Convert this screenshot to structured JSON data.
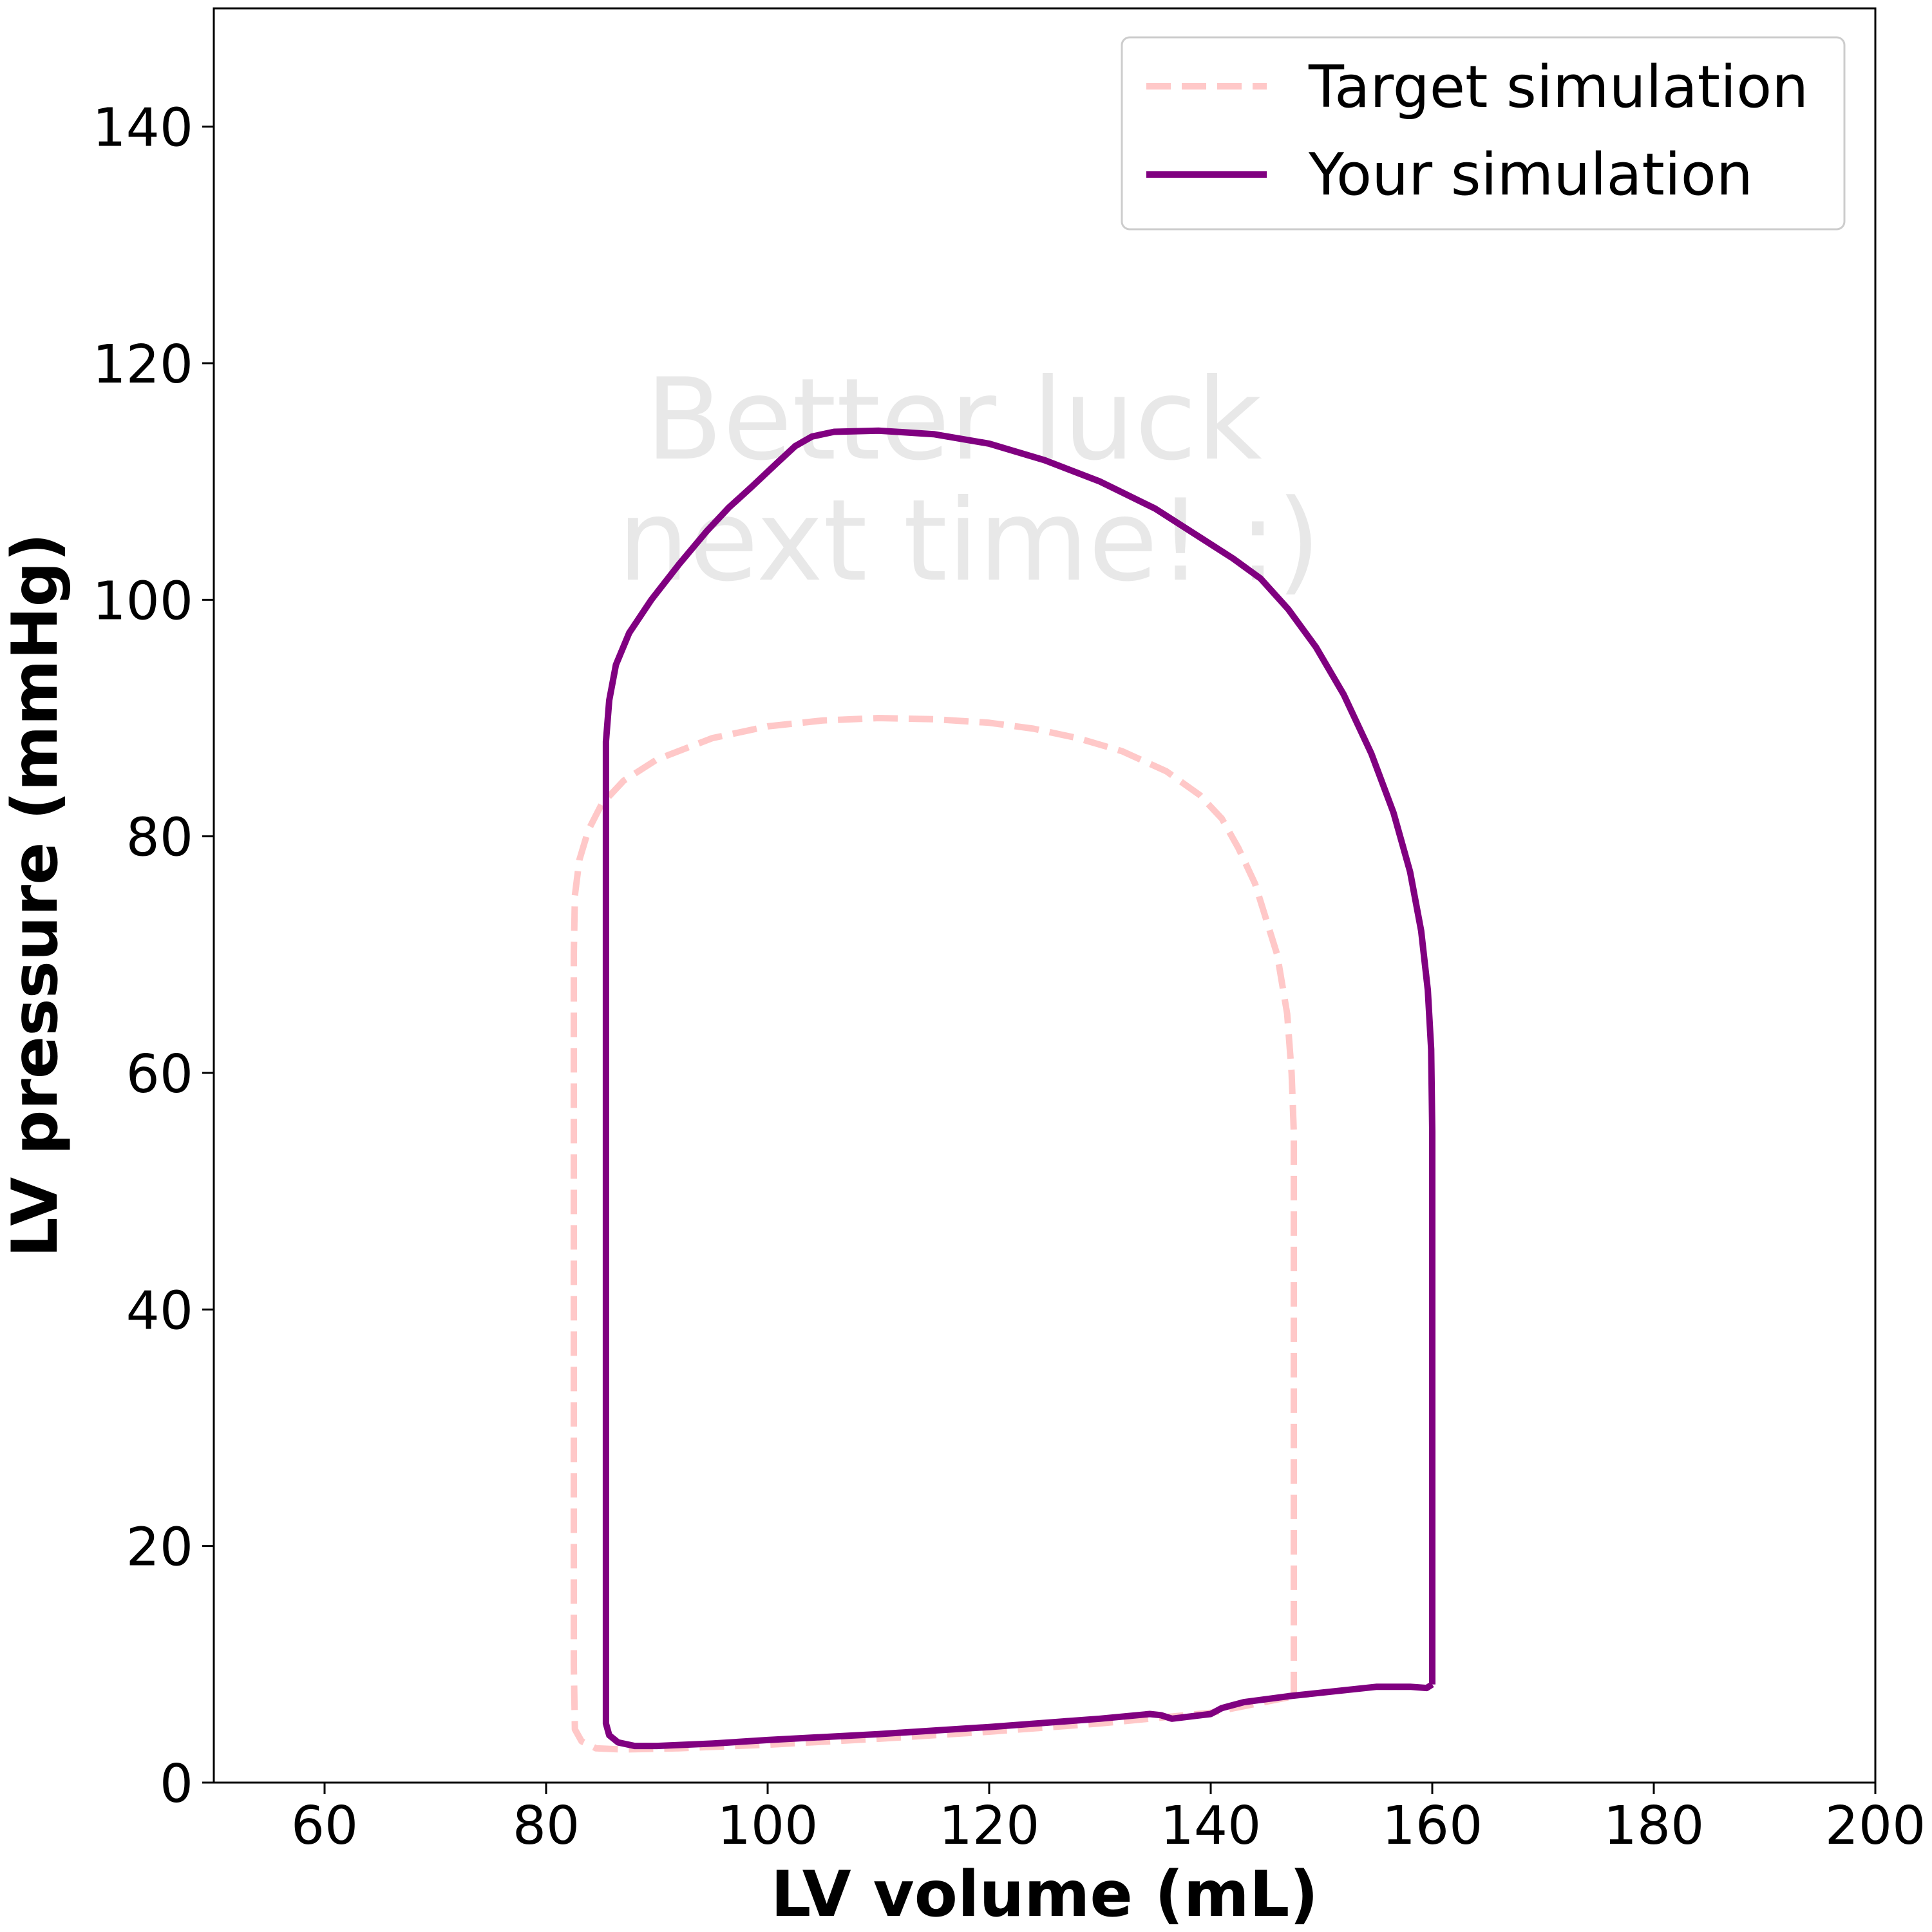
{
  "chart_data": {
    "type": "line",
    "xlabel": "LV volume (mL)",
    "ylabel": "LV pressure (mmHg)",
    "xlim": [
      50,
      200
    ],
    "ylim": [
      0,
      150
    ],
    "x_ticks": [
      60,
      80,
      100,
      120,
      140,
      160,
      180,
      200
    ],
    "y_ticks": [
      0,
      20,
      40,
      60,
      80,
      100,
      120,
      140
    ],
    "grid": false,
    "legend_position": "top-right",
    "annotation": [
      "Better luck",
      "next time! :)"
    ],
    "series": [
      {
        "name": "Target simulation",
        "color": "#ffc8c8",
        "line_style": "dashed",
        "points": [
          [
            147.5,
            7.3
          ],
          [
            147.5,
            20
          ],
          [
            147.5,
            40
          ],
          [
            147.5,
            55
          ],
          [
            147.3,
            60
          ],
          [
            146.9,
            65
          ],
          [
            146.0,
            70
          ],
          [
            145.0,
            73
          ],
          [
            144.0,
            76
          ],
          [
            142.5,
            79
          ],
          [
            141.0,
            81.5
          ],
          [
            139.0,
            83.5
          ],
          [
            136.0,
            85.5
          ],
          [
            132.0,
            87.2
          ],
          [
            128.0,
            88.3
          ],
          [
            124.0,
            89.1
          ],
          [
            120.0,
            89.6
          ],
          [
            115.0,
            89.9
          ],
          [
            110.0,
            90.0
          ],
          [
            105.0,
            89.8
          ],
          [
            100.0,
            89.3
          ],
          [
            95.0,
            88.3
          ],
          [
            90.0,
            86.5
          ],
          [
            87.0,
            84.7
          ],
          [
            85.0,
            82.7
          ],
          [
            83.8,
            80.5
          ],
          [
            83.0,
            78.0
          ],
          [
            82.6,
            75.0
          ],
          [
            82.5,
            70
          ],
          [
            82.5,
            50
          ],
          [
            82.5,
            30
          ],
          [
            82.5,
            10
          ],
          [
            82.6,
            4.5
          ],
          [
            83.2,
            3.5
          ],
          [
            84.5,
            2.9
          ],
          [
            87.0,
            2.8
          ],
          [
            92.0,
            2.9
          ],
          [
            100.0,
            3.2
          ],
          [
            110.0,
            3.7
          ],
          [
            120.0,
            4.3
          ],
          [
            130.0,
            5.0
          ],
          [
            140.0,
            5.9
          ],
          [
            147.5,
            7.3
          ]
        ]
      },
      {
        "name": "Your simulation",
        "color": "#800080",
        "line_style": "solid",
        "points": [
          [
            160.0,
            8.3
          ],
          [
            160.0,
            20
          ],
          [
            160.0,
            40
          ],
          [
            160.0,
            55
          ],
          [
            159.9,
            62
          ],
          [
            159.6,
            67
          ],
          [
            159.0,
            72
          ],
          [
            158.0,
            77
          ],
          [
            156.5,
            82
          ],
          [
            154.5,
            87
          ],
          [
            152.0,
            92
          ],
          [
            149.5,
            96
          ],
          [
            147.0,
            99.2
          ],
          [
            144.5,
            101.8
          ],
          [
            142.0,
            103.5
          ],
          [
            139.0,
            105.3
          ],
          [
            135.0,
            107.7
          ],
          [
            130.0,
            110.0
          ],
          [
            125.0,
            111.8
          ],
          [
            120.0,
            113.2
          ],
          [
            115.0,
            114.0
          ],
          [
            110.0,
            114.3
          ],
          [
            106.0,
            114.2
          ],
          [
            104.0,
            113.8
          ],
          [
            102.5,
            113.0
          ],
          [
            101.0,
            111.7
          ],
          [
            98.5,
            109.5
          ],
          [
            96.5,
            107.8
          ],
          [
            94.5,
            105.8
          ],
          [
            92.0,
            103.0
          ],
          [
            89.5,
            100.0
          ],
          [
            87.5,
            97.2
          ],
          [
            86.3,
            94.5
          ],
          [
            85.7,
            91.5
          ],
          [
            85.4,
            88.0
          ],
          [
            85.4,
            70
          ],
          [
            85.4,
            50
          ],
          [
            85.4,
            30
          ],
          [
            85.4,
            10
          ],
          [
            85.4,
            5.0
          ],
          [
            85.7,
            4.0
          ],
          [
            86.5,
            3.4
          ],
          [
            88.0,
            3.1
          ],
          [
            90.0,
            3.1
          ],
          [
            95.0,
            3.3
          ],
          [
            100.0,
            3.6
          ],
          [
            110.0,
            4.1
          ],
          [
            120.0,
            4.7
          ],
          [
            130.0,
            5.4
          ],
          [
            134.5,
            5.8
          ],
          [
            135.5,
            5.7
          ],
          [
            136.5,
            5.4
          ],
          [
            140.0,
            5.8
          ],
          [
            141.0,
            6.3
          ],
          [
            143.0,
            6.8
          ],
          [
            147.0,
            7.3
          ],
          [
            152.0,
            7.8
          ],
          [
            155.0,
            8.1
          ],
          [
            158.0,
            8.1
          ],
          [
            159.5,
            8.0
          ],
          [
            160.0,
            8.3
          ]
        ]
      }
    ]
  }
}
